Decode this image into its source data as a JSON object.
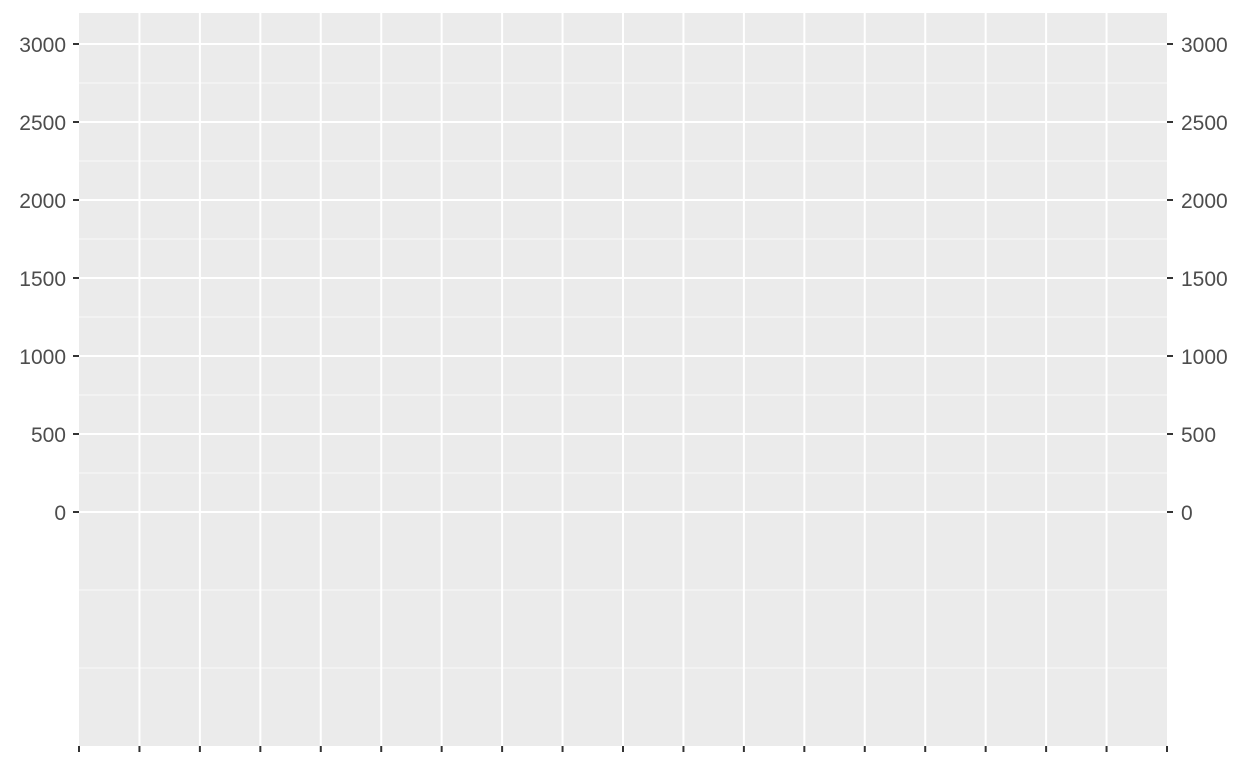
{
  "chart_data": {
    "type": "line",
    "title": "",
    "xlabel": "",
    "ylabel": "",
    "series": [],
    "y_axis": {
      "ticks": [
        0,
        500,
        1000,
        1500,
        2000,
        2500,
        3000
      ],
      "tick_labels": [
        "0",
        "500",
        "1000",
        "1500",
        "2000",
        "2500",
        "3000"
      ],
      "ylim": [
        -1500,
        3200
      ],
      "minor_gridlines": [
        -1000,
        -500,
        250,
        750,
        1250,
        1750,
        2250,
        2750
      ]
    },
    "secondary_y_axis": {
      "ticks": [
        0,
        500,
        1000,
        1500,
        2000,
        2500,
        3000
      ],
      "tick_labels": [
        "0",
        "500",
        "1000",
        "1500",
        "2000",
        "2500",
        "3000"
      ]
    },
    "x_axis": {
      "tick_count": 19,
      "tick_labels": []
    },
    "grid": true,
    "colors": {
      "panel_background": "#ebebeb",
      "gridline": "#ffffff",
      "axis_text": "#4d4d4d",
      "tick_mark": "#333333"
    }
  }
}
